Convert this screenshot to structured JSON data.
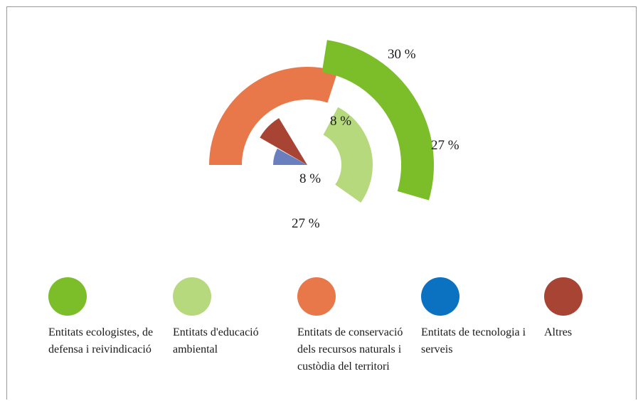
{
  "chart_data": {
    "type": "radial-bar",
    "series": [
      {
        "name": "Entitats ecologistes, de defensa i reivindicació",
        "value": 27,
        "label": "27 %",
        "color": "#7cbd2a"
      },
      {
        "name": "Entitats d'educació ambiental",
        "value": 27,
        "label": "27 %",
        "color": "#b6d97e"
      },
      {
        "name": "Entitats de conservació dels recursos naturals i custòdia del territori",
        "value": 30,
        "label": "30 %",
        "color": "#e8784a"
      },
      {
        "name": "Entitats de tecnologia i serveis",
        "value": 8,
        "label": "8 %",
        "color": "#6a7fbd"
      },
      {
        "name": "Altres",
        "value": 8,
        "label": "8 %",
        "color": "#a84433"
      }
    ],
    "legend": [
      {
        "text": "Entitats ecologistes, de defensa i reivindicació",
        "color": "#7cbd2a"
      },
      {
        "text": "Entitats d'educació ambiental",
        "color": "#b6d97e"
      },
      {
        "text": "Entitats de conservació dels recursos naturals i custòdia del territori",
        "color": "#e8784a"
      },
      {
        "text": "Entitats de tecnologia i serveis",
        "color": "#0a72c0"
      },
      {
        "text": "Altres",
        "color": "#a84433"
      }
    ],
    "legend_position": "bottom"
  }
}
